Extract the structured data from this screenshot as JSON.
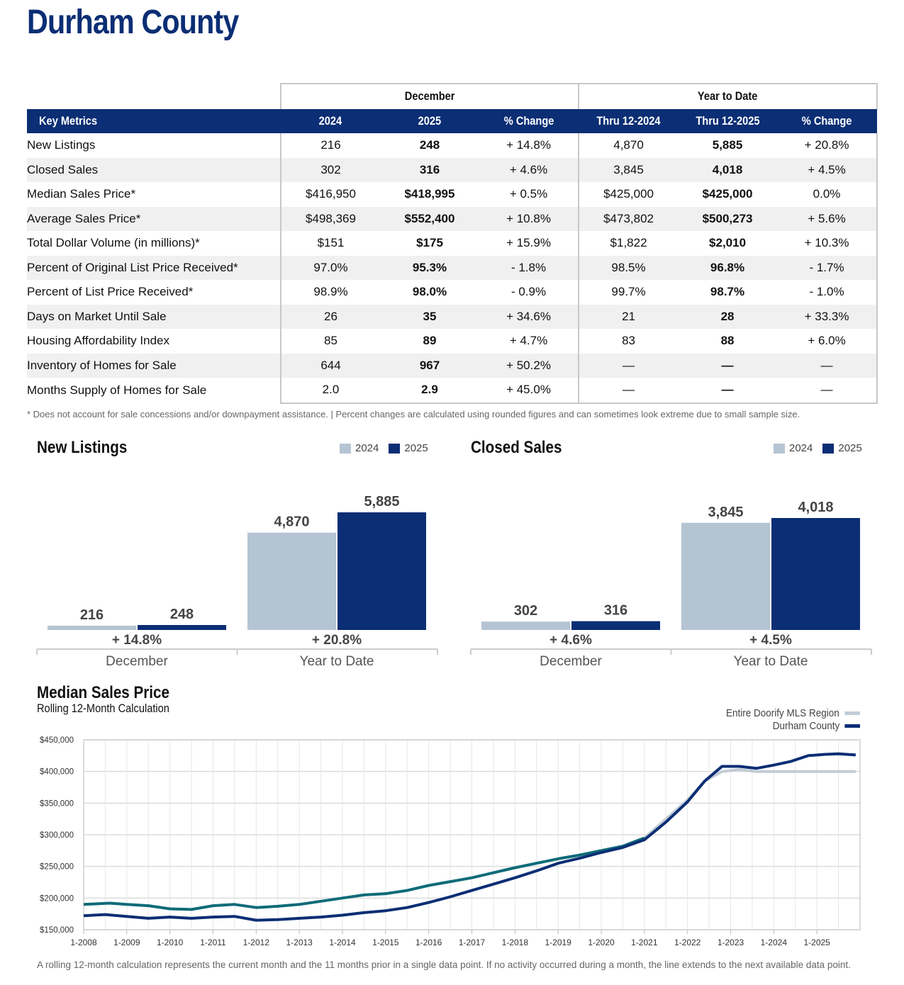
{
  "page": {
    "title": "Durham County"
  },
  "table": {
    "group_headers": {
      "december": "December",
      "ytd": "Year to Date"
    },
    "columns": {
      "metric": "Key Metrics",
      "dec_2024": "2024",
      "dec_2025": "2025",
      "dec_change": "% Change",
      "ytd_2024": "Thru 12-2024",
      "ytd_2025": "Thru 12-2025",
      "ytd_change": "% Change"
    },
    "rows": [
      {
        "name": "New Listings",
        "dec_2024": "216",
        "dec_2025": "248",
        "dec_change": "+ 14.8%",
        "ytd_2024": "4,870",
        "ytd_2025": "5,885",
        "ytd_change": "+ 20.8%"
      },
      {
        "name": "Closed Sales",
        "dec_2024": "302",
        "dec_2025": "316",
        "dec_change": "+ 4.6%",
        "ytd_2024": "3,845",
        "ytd_2025": "4,018",
        "ytd_change": "+ 4.5%"
      },
      {
        "name": "Median Sales Price*",
        "dec_2024": "$416,950",
        "dec_2025": "$418,995",
        "dec_change": "+ 0.5%",
        "ytd_2024": "$425,000",
        "ytd_2025": "$425,000",
        "ytd_change": "0.0%"
      },
      {
        "name": "Average Sales Price*",
        "dec_2024": "$498,369",
        "dec_2025": "$552,400",
        "dec_change": "+ 10.8%",
        "ytd_2024": "$473,802",
        "ytd_2025": "$500,273",
        "ytd_change": "+ 5.6%"
      },
      {
        "name": "Total Dollar Volume (in millions)*",
        "dec_2024": "$151",
        "dec_2025": "$175",
        "dec_change": "+ 15.9%",
        "ytd_2024": "$1,822",
        "ytd_2025": "$2,010",
        "ytd_change": "+ 10.3%"
      },
      {
        "name": "Percent of Original List Price Received*",
        "dec_2024": "97.0%",
        "dec_2025": "95.3%",
        "dec_change": "- 1.8%",
        "ytd_2024": "98.5%",
        "ytd_2025": "96.8%",
        "ytd_change": "- 1.7%"
      },
      {
        "name": "Percent of List Price Received*",
        "dec_2024": "98.9%",
        "dec_2025": "98.0%",
        "dec_change": "- 0.9%",
        "ytd_2024": "99.7%",
        "ytd_2025": "98.7%",
        "ytd_change": "- 1.0%"
      },
      {
        "name": "Days on Market Until Sale",
        "dec_2024": "26",
        "dec_2025": "35",
        "dec_change": "+ 34.6%",
        "ytd_2024": "21",
        "ytd_2025": "28",
        "ytd_change": "+ 33.3%"
      },
      {
        "name": "Housing Affordability Index",
        "dec_2024": "85",
        "dec_2025": "89",
        "dec_change": "+ 4.7%",
        "ytd_2024": "83",
        "ytd_2025": "88",
        "ytd_change": "+ 6.0%"
      },
      {
        "name": "Inventory of Homes for Sale",
        "dec_2024": "644",
        "dec_2025": "967",
        "dec_change": "+ 50.2%",
        "ytd_2024": "—",
        "ytd_2025": "—",
        "ytd_change": "—"
      },
      {
        "name": "Months Supply of Homes for Sale",
        "dec_2024": "2.0",
        "dec_2025": "2.9",
        "dec_change": "+ 45.0%",
        "ytd_2024": "—",
        "ytd_2025": "—",
        "ytd_change": "—"
      }
    ],
    "footnote": "* Does not account for sale concessions and/or downpayment assistance. | Percent changes are calculated using rounded figures and can sometimes look extreme due to small sample size."
  },
  "colors": {
    "navy": "#0b2e74",
    "light": "#b5c4d3",
    "teal": "#0e6b78",
    "gray_line": "#c2ccd6"
  },
  "chart_data": [
    {
      "type": "bar",
      "title": "New Listings",
      "legend": [
        "2024",
        "2025"
      ],
      "categories": [
        "December",
        "Year to Date"
      ],
      "series": [
        {
          "name": "2024",
          "values": [
            216,
            4870
          ],
          "labels": [
            "216",
            "4,870"
          ]
        },
        {
          "name": "2025",
          "values": [
            248,
            5885
          ],
          "labels": [
            "248",
            "5,885"
          ]
        }
      ],
      "changes": [
        "+ 14.8%",
        "+ 20.8%"
      ]
    },
    {
      "type": "bar",
      "title": "Closed Sales",
      "legend": [
        "2024",
        "2025"
      ],
      "categories": [
        "December",
        "Year to Date"
      ],
      "series": [
        {
          "name": "2024",
          "values": [
            302,
            3845
          ],
          "labels": [
            "302",
            "3,845"
          ]
        },
        {
          "name": "2025",
          "values": [
            316,
            4018
          ],
          "labels": [
            "316",
            "4,018"
          ]
        }
      ],
      "changes": [
        "+ 4.6%",
        "+ 4.5%"
      ]
    },
    {
      "type": "line",
      "title": "Median Sales Price",
      "subtitle": "Rolling 12-Month Calculation",
      "ylim": [
        150000,
        450000
      ],
      "yticks": [
        150000,
        200000,
        250000,
        300000,
        350000,
        400000,
        450000
      ],
      "ytick_labels": [
        "$150,000",
        "$200,000",
        "$250,000",
        "$300,000",
        "$350,000",
        "$400,000",
        "$450,000"
      ],
      "xlim": [
        2008,
        2026
      ],
      "xtick_labels": [
        "1-2008",
        "1-2009",
        "1-2010",
        "1-2011",
        "1-2012",
        "1-2013",
        "1-2014",
        "1-2015",
        "1-2016",
        "1-2017",
        "1-2018",
        "1-2019",
        "1-2020",
        "1-2021",
        "1-2022",
        "1-2023",
        "1-2024",
        "1-2025"
      ],
      "series": [
        {
          "name": "Entire Doorify MLS Region",
          "color": "region",
          "points": [
            [
              2008.0,
              190000
            ],
            [
              2008.6,
              192000
            ],
            [
              2009.0,
              190000
            ],
            [
              2009.5,
              188000
            ],
            [
              2010.0,
              183000
            ],
            [
              2010.5,
              182000
            ],
            [
              2011.0,
              188000
            ],
            [
              2011.5,
              190000
            ],
            [
              2012.0,
              185000
            ],
            [
              2012.5,
              187000
            ],
            [
              2013.0,
              190000
            ],
            [
              2013.5,
              195000
            ],
            [
              2014.0,
              200000
            ],
            [
              2014.5,
              205000
            ],
            [
              2015.0,
              207000
            ],
            [
              2015.5,
              212000
            ],
            [
              2016.0,
              220000
            ],
            [
              2016.5,
              226000
            ],
            [
              2017.0,
              232000
            ],
            [
              2017.5,
              240000
            ],
            [
              2018.0,
              248000
            ],
            [
              2018.5,
              255000
            ],
            [
              2019.0,
              262000
            ],
            [
              2019.5,
              268000
            ],
            [
              2020.0,
              275000
            ],
            [
              2020.5,
              282000
            ],
            [
              2021.0,
              295000
            ],
            [
              2021.5,
              325000
            ],
            [
              2022.0,
              355000
            ],
            [
              2022.4,
              385000
            ],
            [
              2022.8,
              400000
            ],
            [
              2023.2,
              403000
            ],
            [
              2023.6,
              400000
            ],
            [
              2024.0,
              400000
            ],
            [
              2025.0,
              400000
            ],
            [
              2025.9,
              400000
            ]
          ]
        },
        {
          "name": "Durham County",
          "color": "county",
          "points": [
            [
              2008.0,
              172000
            ],
            [
              2008.5,
              174000
            ],
            [
              2009.0,
              171000
            ],
            [
              2009.5,
              168000
            ],
            [
              2010.0,
              170000
            ],
            [
              2010.5,
              168000
            ],
            [
              2011.0,
              170000
            ],
            [
              2011.5,
              171000
            ],
            [
              2012.0,
              165000
            ],
            [
              2012.5,
              166000
            ],
            [
              2013.0,
              168000
            ],
            [
              2013.5,
              170000
            ],
            [
              2014.0,
              173000
            ],
            [
              2014.5,
              177000
            ],
            [
              2015.0,
              180000
            ],
            [
              2015.5,
              185000
            ],
            [
              2016.0,
              193000
            ],
            [
              2016.5,
              202000
            ],
            [
              2017.0,
              212000
            ],
            [
              2017.5,
              222000
            ],
            [
              2018.0,
              232000
            ],
            [
              2018.5,
              243000
            ],
            [
              2019.0,
              255000
            ],
            [
              2019.5,
              263000
            ],
            [
              2020.0,
              272000
            ],
            [
              2020.5,
              280000
            ],
            [
              2021.0,
              292000
            ],
            [
              2021.5,
              320000
            ],
            [
              2022.0,
              352000
            ],
            [
              2022.4,
              385000
            ],
            [
              2022.8,
              408000
            ],
            [
              2023.2,
              408000
            ],
            [
              2023.6,
              405000
            ],
            [
              2024.0,
              410000
            ],
            [
              2024.4,
              416000
            ],
            [
              2024.8,
              425000
            ],
            [
              2025.2,
              427000
            ],
            [
              2025.5,
              428000
            ],
            [
              2025.9,
              426000
            ]
          ]
        }
      ],
      "note": "A rolling 12-month calculation represents the current month and the 11 months prior in a single data point. If no activity occurred during a month, the line extends to the next available data point."
    }
  ]
}
